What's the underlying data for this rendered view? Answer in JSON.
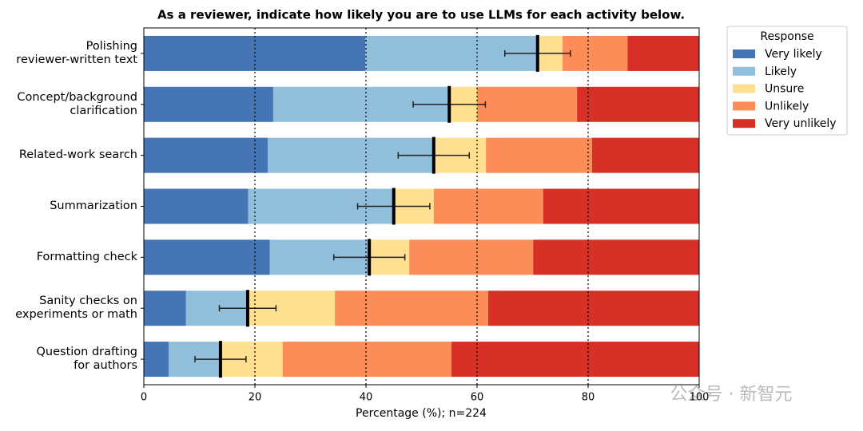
{
  "chart_data": {
    "type": "stacked-bar-horizontal",
    "title": "As a reviewer, indicate how likely you are to use LLMs for each activity below.",
    "xlabel": "Percentage (%); n=224",
    "categories": [
      "Polishing\nreviewer-written text",
      "Concept/background\nclarification",
      "Related-work search",
      "Summarization",
      "Formatting check",
      "Sanity checks on\nexperiments or math",
      "Question drafting\nfor authors"
    ],
    "series": [
      {
        "name": "Very likely",
        "color": "#4575b4",
        "values": [
          39.9,
          23.3,
          22.3,
          18.8,
          22.7,
          7.6,
          4.5
        ]
      },
      {
        "name": "Likely",
        "color": "#91bfdb",
        "values": [
          31.0,
          31.7,
          29.9,
          26.2,
          17.9,
          11.2,
          9.5
        ]
      },
      {
        "name": "Unsure",
        "color": "#fee090",
        "values": [
          4.5,
          5.0,
          9.4,
          7.2,
          7.2,
          15.6,
          11.0
        ]
      },
      {
        "name": "Unlikely",
        "color": "#fc8d59",
        "values": [
          11.7,
          18.0,
          19.1,
          19.7,
          22.3,
          27.6,
          30.4
        ]
      },
      {
        "name": "Very unlikely",
        "color": "#d73027",
        "values": [
          12.9,
          22.0,
          19.3,
          28.1,
          29.9,
          38.0,
          44.6
        ]
      }
    ],
    "means": [
      70.9,
      55.0,
      52.2,
      45.0,
      40.6,
      18.7,
      13.8
    ],
    "errors": [
      5.9,
      6.5,
      6.4,
      6.5,
      6.4,
      5.1,
      4.6
    ],
    "xlim": [
      0,
      100
    ],
    "xticks": [
      0,
      20,
      40,
      60,
      80,
      100
    ],
    "grid": true,
    "legend_title": "Response",
    "legend": "outside upper right",
    "watermark": "公众号 · 新智元"
  }
}
